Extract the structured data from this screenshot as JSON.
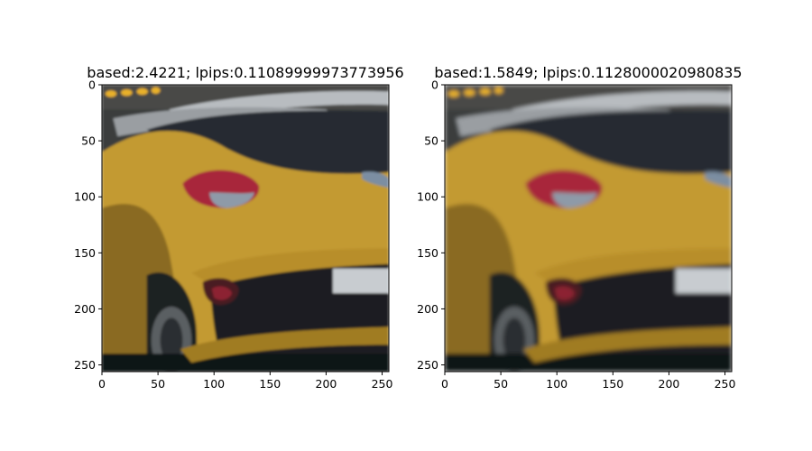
{
  "chart_data": [
    {
      "type": "image",
      "title": "based:2.4221; lpips:0.11089999973773956",
      "xlim": [
        0,
        256
      ],
      "ylim": [
        256,
        0
      ],
      "xticks": [
        0,
        50,
        100,
        150,
        200,
        250
      ],
      "yticks": [
        0,
        50,
        100,
        150,
        200,
        250
      ],
      "image_content": "yellow car rear quarter, sharper",
      "blur": 1.0
    },
    {
      "type": "image",
      "title": "based:1.5849; lpips:0.1128000020980835",
      "xlim": [
        0,
        256
      ],
      "ylim": [
        256,
        0
      ],
      "xticks": [
        0,
        50,
        100,
        150,
        200,
        250
      ],
      "yticks": [
        0,
        50,
        100,
        150,
        200,
        250
      ],
      "image_content": "yellow car rear quarter, smoother",
      "blur": 2.0
    }
  ],
  "colors": {
    "car_body": "#c39a32",
    "car_shadow": "#7a5c1c",
    "window": "#2a3038",
    "taillight": "#a8283a",
    "background_dark": "#1a1c1e",
    "sky": "#8c9094"
  }
}
